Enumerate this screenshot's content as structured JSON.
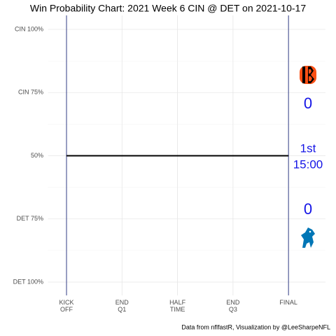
{
  "chart_data": {
    "type": "line",
    "title": "Win Probability Chart: 2021 Week 6 CIN @ DET on 2021-10-17",
    "caption": "Data from nflfastR, Visualization by @LeeSharpeNFL",
    "x": [
      0,
      3600
    ],
    "values": [
      50,
      50
    ],
    "color": "#000000",
    "xlim": [
      -300,
      4200
    ],
    "ylim": [
      0,
      100
    ],
    "xticks": [
      {
        "value": 0,
        "label": "KICK\nOFF"
      },
      {
        "value": 900,
        "label": "END\nQ1"
      },
      {
        "value": 1800,
        "label": "HALF\nTIME"
      },
      {
        "value": 2700,
        "label": "END\nQ3"
      },
      {
        "value": 3600,
        "label": "FINAL"
      }
    ],
    "yticks": [
      {
        "value": 0,
        "label": "DET 100%"
      },
      {
        "value": 25,
        "label": "DET 75%"
      },
      {
        "value": 50,
        "label": "50%"
      },
      {
        "value": 75,
        "label": "CIN 75%"
      },
      {
        "value": 100,
        "label": "CIN 100%"
      }
    ],
    "minor_yticks": [
      12.5,
      37.5,
      62.5,
      87.5
    ],
    "vlines": [
      0,
      3600
    ],
    "vline_color": "#1f2a7a",
    "grid": true,
    "annotations": {
      "away_score": "0",
      "home_score": "0",
      "period": "1st",
      "clock": "15:00"
    },
    "annotation_color": "#1414e6"
  }
}
